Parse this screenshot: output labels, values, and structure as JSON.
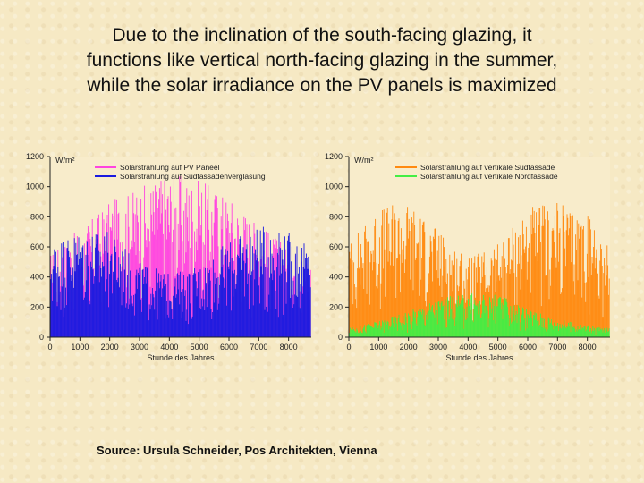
{
  "slide": {
    "title_lines": [
      "Due to the inclination of the south-facing glazing, it",
      "functions like vertical north-facing glazing in the summer,",
      "while the solar irradiance on the PV panels is maximized"
    ],
    "source": "Source: Ursula Schneider, Pos Architekten, Vienna"
  },
  "chart_data": [
    {
      "type": "bar",
      "unit_label": "W/m²",
      "xlabel": "Stunde des Jahres",
      "ylabel": "",
      "xlim": [
        0,
        8760
      ],
      "ylim": [
        0,
        1200
      ],
      "x_ticks": [
        0,
        1000,
        2000,
        3000,
        4000,
        5000,
        6000,
        7000,
        8000
      ],
      "y_ticks": [
        0,
        200,
        400,
        600,
        800,
        1000,
        1200
      ],
      "legend_position": "top-right",
      "series": [
        {
          "name": "Solarstrahlung auf PV Paneel",
          "color": "#ff44e0",
          "envelope": {
            "hours": [
              0,
              1000,
              2000,
              3000,
              4000,
              5000,
              6000,
              7000,
              8000,
              8760
            ],
            "peak_values": [
              560,
              720,
              900,
              1000,
              1100,
              1050,
              950,
              760,
              600,
              520
            ]
          }
        },
        {
          "name": "Solarstrahlung auf Südfassadenverglasung",
          "color": "#1a1adf",
          "envelope": {
            "hours": [
              0,
              1000,
              2000,
              3000,
              4000,
              5000,
              6000,
              7000,
              8000,
              8760
            ],
            "peak_values": [
              640,
              720,
              700,
              500,
              420,
              480,
              640,
              740,
              700,
              600
            ]
          }
        }
      ]
    },
    {
      "type": "bar",
      "unit_label": "W/m²",
      "xlabel": "Stunde des Jahres",
      "ylabel": "",
      "xlim": [
        0,
        8760
      ],
      "ylim": [
        0,
        1200
      ],
      "x_ticks": [
        0,
        1000,
        2000,
        3000,
        4000,
        5000,
        6000,
        7000,
        8000
      ],
      "y_ticks": [
        0,
        200,
        400,
        600,
        800,
        1000,
        1200
      ],
      "legend_position": "top-right",
      "series": [
        {
          "name": "Solarstrahlung auf vertikale Südfassade",
          "color": "#ff8a10",
          "envelope": {
            "hours": [
              0,
              1000,
              2000,
              3000,
              4000,
              5000,
              6000,
              7000,
              8000,
              8760
            ],
            "peak_values": [
              640,
              860,
              900,
              720,
              520,
              620,
              860,
              900,
              820,
              620
            ]
          }
        },
        {
          "name": "Solarstrahlung auf vertikale Nordfassade",
          "color": "#44ee44",
          "envelope": {
            "hours": [
              0,
              1000,
              2000,
              3000,
              4000,
              5000,
              6000,
              7000,
              8000,
              8760
            ],
            "peak_values": [
              60,
              110,
              180,
              260,
              300,
              280,
              200,
              120,
              80,
              60
            ]
          }
        }
      ]
    }
  ]
}
